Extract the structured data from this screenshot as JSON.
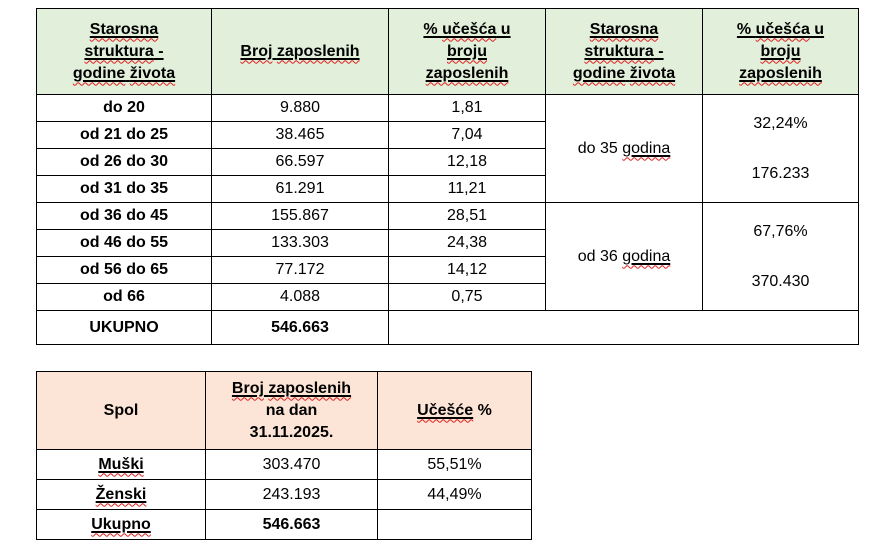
{
  "colors": {
    "table1_header_bg": "#e2efda",
    "table2_header_bg": "#fce4d6",
    "border": "#000000",
    "spellcheck_squiggle": "#de1f1f",
    "text": "#000000"
  },
  "table1": {
    "title_semantic": "Age structure of employees",
    "header": {
      "col1": [
        {
          "t": "Starosna",
          "u": 1,
          "w": 1
        },
        {
          "br": 1
        },
        {
          "t": "struktura",
          "u": 1,
          "w": 1
        },
        {
          "t": " -",
          "u": 1
        },
        {
          "br": 1
        },
        {
          "t": "godine",
          "u": 1,
          "w": 1
        },
        {
          "t": " ",
          "u": 1
        },
        {
          "t": "života",
          "u": 1,
          "w": 1
        }
      ],
      "col2": [
        {
          "t": "Broj",
          "u": 1,
          "w": 1
        },
        {
          "t": " ",
          "u": 1
        },
        {
          "t": "zaposlenih",
          "u": 1,
          "w": 1
        }
      ],
      "col3": [
        {
          "t": "% ",
          "u": 1
        },
        {
          "t": "učešća",
          "u": 1,
          "w": 1
        },
        {
          "t": " u",
          "u": 1
        },
        {
          "br": 1
        },
        {
          "t": "broju",
          "u": 1,
          "w": 1
        },
        {
          "br": 1
        },
        {
          "t": "zaposlenih",
          "u": 1,
          "w": 1
        }
      ],
      "col4": [
        {
          "t": "Starosna",
          "u": 1,
          "w": 1
        },
        {
          "br": 1
        },
        {
          "t": "struktura",
          "u": 1,
          "w": 1
        },
        {
          "t": " -",
          "u": 1
        },
        {
          "br": 1
        },
        {
          "t": "godine",
          "u": 1,
          "w": 1
        },
        {
          "t": " ",
          "u": 1
        },
        {
          "t": "života",
          "u": 1,
          "w": 1
        }
      ],
      "col5": [
        {
          "t": "% ",
          "u": 1
        },
        {
          "t": "učešća",
          "u": 1,
          "w": 1
        },
        {
          "t": " u",
          "u": 1
        },
        {
          "br": 1
        },
        {
          "t": "broju",
          "u": 1,
          "w": 1
        },
        {
          "br": 1
        },
        {
          "t": "zaposlenih",
          "u": 1,
          "w": 1
        }
      ]
    },
    "rows": [
      {
        "label": "do 20",
        "count": "9.880",
        "pct": "1,81"
      },
      {
        "label": "od 21 do 25",
        "count": "38.465",
        "pct": "7,04"
      },
      {
        "label": "od 26 do 30",
        "count": "66.597",
        "pct": "12,18"
      },
      {
        "label": "od 31 do 35",
        "count": "61.291",
        "pct": "11,21"
      },
      {
        "label": "od 36 do 45",
        "count": "155.867",
        "pct": "28,51"
      },
      {
        "label": "od 46 do 55",
        "count": "133.303",
        "pct": "24,38"
      },
      {
        "label": "od 56 do 65",
        "count": "77.172",
        "pct": "14,12"
      },
      {
        "label": "od 66",
        "count": "4.088",
        "pct": "0,75"
      }
    ],
    "group1": {
      "label": [
        {
          "t": "do 35 "
        },
        {
          "t": "godina",
          "u": 1,
          "w": 1
        }
      ],
      "pct": "32,24%",
      "count": "176.233"
    },
    "group2": {
      "label": [
        {
          "t": "od 36 "
        },
        {
          "t": "godina",
          "u": 1,
          "w": 1
        }
      ],
      "pct": "67,76%",
      "count": "370.430"
    },
    "total": {
      "label": "UKUPNO",
      "count": "546.663",
      "rest": ""
    }
  },
  "table2": {
    "title_semantic": "Employees by sex",
    "header": {
      "col1": [
        {
          "t": "Spol"
        }
      ],
      "col2": [
        {
          "t": "Broj",
          "u": 1,
          "w": 1
        },
        {
          "t": " ",
          "u": 1
        },
        {
          "t": "zaposlenih",
          "u": 1,
          "w": 1
        },
        {
          "br": 1
        },
        {
          "t": "na dan"
        },
        {
          "br": 1
        },
        {
          "t": "31.11.2025."
        }
      ],
      "col3": [
        {
          "t": "Učešće",
          "u": 1,
          "w": 1
        },
        {
          "t": " %"
        }
      ]
    },
    "rows": [
      {
        "label": [
          {
            "t": "Muški",
            "u": 1,
            "w": 1
          }
        ],
        "count": "303.470",
        "pct": "55,51%"
      },
      {
        "label": [
          {
            "t": "Ženski",
            "u": 1,
            "w": 1
          }
        ],
        "count": "243.193",
        "pct": "44,49%"
      }
    ],
    "total": {
      "label": [
        {
          "t": "Ukupno",
          "u": 1,
          "w": 1
        }
      ],
      "count": "546.663",
      "pct": ""
    }
  }
}
